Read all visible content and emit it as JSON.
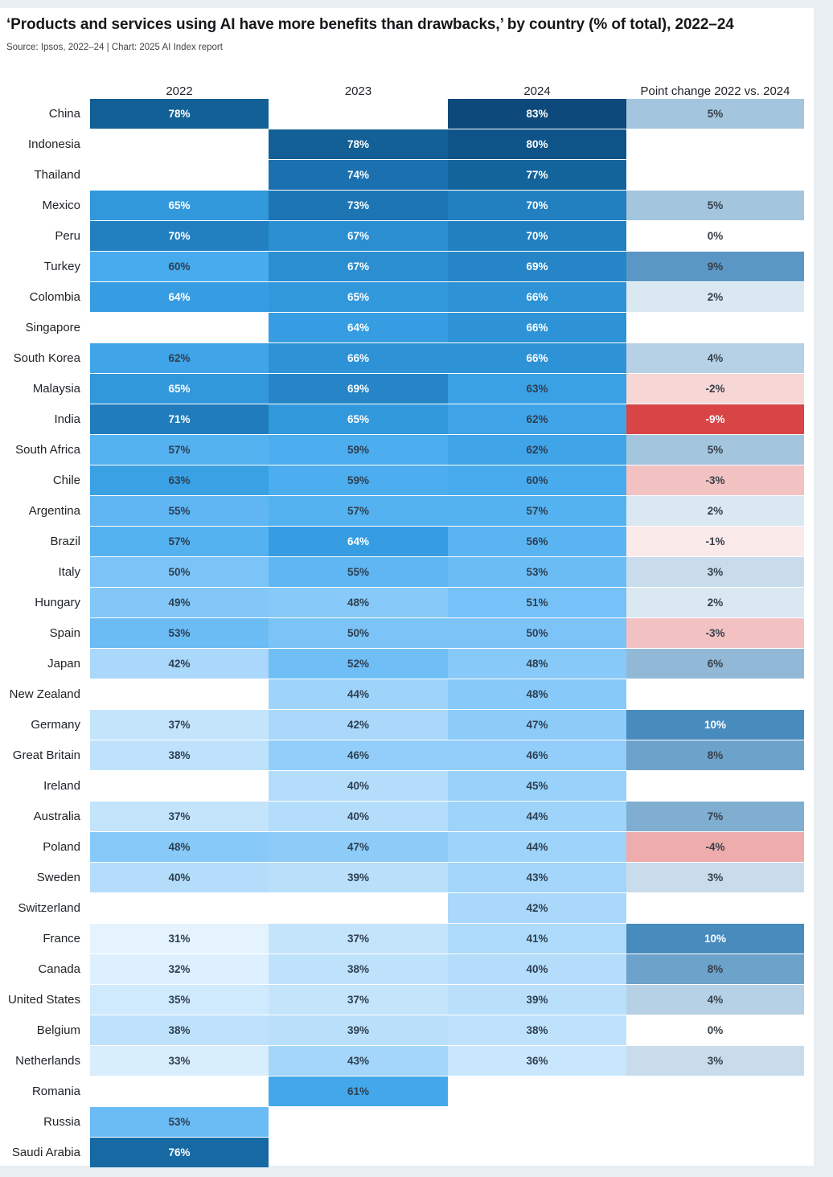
{
  "header": {
    "title": "‘Products and services using AI have more benefits than drawbacks,’ by country (% of total), 2022–24",
    "source": "Source: Ipsos, 2022–24 | Chart: 2025 AI Index report"
  },
  "chart_data": {
    "type": "heatmap",
    "title": "‘Products and services using AI have more benefits than drawbacks,’ by country (% of total), 2022–24",
    "source": "Source: Ipsos, 2022–24 | Chart: 2025 AI Index report",
    "unit": "%",
    "columns": [
      "2022",
      "2023",
      "2024",
      "Point change 2022 vs. 2024"
    ],
    "value_range": [
      31,
      83
    ],
    "change_range": [
      -9,
      10
    ],
    "legend_position": "none",
    "grid": false,
    "colors": {
      "year_scale_low": "#e9f5fe",
      "year_scale_high": "#0b4270",
      "change_positive_max": "#488bbd",
      "change_negative_max": "#d94546",
      "empty_cell": "#ffffff",
      "white_text_year_threshold": 64,
      "page_background": "#e9eef3",
      "card_background": "#ffffff"
    },
    "rows": [
      {
        "country": "China",
        "y2022": 78,
        "y2023": null,
        "y2024": 83,
        "change": 5
      },
      {
        "country": "Indonesia",
        "y2022": null,
        "y2023": 78,
        "y2024": 80,
        "change": null
      },
      {
        "country": "Thailand",
        "y2022": null,
        "y2023": 74,
        "y2024": 77,
        "change": null
      },
      {
        "country": "Mexico",
        "y2022": 65,
        "y2023": 73,
        "y2024": 70,
        "change": 5
      },
      {
        "country": "Peru",
        "y2022": 70,
        "y2023": 67,
        "y2024": 70,
        "change": 0
      },
      {
        "country": "Turkey",
        "y2022": 60,
        "y2023": 67,
        "y2024": 69,
        "change": 9
      },
      {
        "country": "Colombia",
        "y2022": 64,
        "y2023": 65,
        "y2024": 66,
        "change": 2
      },
      {
        "country": "Singapore",
        "y2022": null,
        "y2023": 64,
        "y2024": 66,
        "change": null
      },
      {
        "country": "South Korea",
        "y2022": 62,
        "y2023": 66,
        "y2024": 66,
        "change": 4
      },
      {
        "country": "Malaysia",
        "y2022": 65,
        "y2023": 69,
        "y2024": 63,
        "change": -2
      },
      {
        "country": "India",
        "y2022": 71,
        "y2023": 65,
        "y2024": 62,
        "change": -9
      },
      {
        "country": "South Africa",
        "y2022": 57,
        "y2023": 59,
        "y2024": 62,
        "change": 5
      },
      {
        "country": "Chile",
        "y2022": 63,
        "y2023": 59,
        "y2024": 60,
        "change": -3
      },
      {
        "country": "Argentina",
        "y2022": 55,
        "y2023": 57,
        "y2024": 57,
        "change": 2
      },
      {
        "country": "Brazil",
        "y2022": 57,
        "y2023": 64,
        "y2024": 56,
        "change": -1
      },
      {
        "country": "Italy",
        "y2022": 50,
        "y2023": 55,
        "y2024": 53,
        "change": 3
      },
      {
        "country": "Hungary",
        "y2022": 49,
        "y2023": 48,
        "y2024": 51,
        "change": 2
      },
      {
        "country": "Spain",
        "y2022": 53,
        "y2023": 50,
        "y2024": 50,
        "change": -3
      },
      {
        "country": "Japan",
        "y2022": 42,
        "y2023": 52,
        "y2024": 48,
        "change": 6
      },
      {
        "country": "New Zealand",
        "y2022": null,
        "y2023": 44,
        "y2024": 48,
        "change": null
      },
      {
        "country": "Germany",
        "y2022": 37,
        "y2023": 42,
        "y2024": 47,
        "change": 10
      },
      {
        "country": "Great Britain",
        "y2022": 38,
        "y2023": 46,
        "y2024": 46,
        "change": 8
      },
      {
        "country": "Ireland",
        "y2022": null,
        "y2023": 40,
        "y2024": 45,
        "change": null
      },
      {
        "country": "Australia",
        "y2022": 37,
        "y2023": 40,
        "y2024": 44,
        "change": 7
      },
      {
        "country": "Poland",
        "y2022": 48,
        "y2023": 47,
        "y2024": 44,
        "change": -4
      },
      {
        "country": "Sweden",
        "y2022": 40,
        "y2023": 39,
        "y2024": 43,
        "change": 3
      },
      {
        "country": "Switzerland",
        "y2022": null,
        "y2023": null,
        "y2024": 42,
        "change": null
      },
      {
        "country": "France",
        "y2022": 31,
        "y2023": 37,
        "y2024": 41,
        "change": 10
      },
      {
        "country": "Canada",
        "y2022": 32,
        "y2023": 38,
        "y2024": 40,
        "change": 8
      },
      {
        "country": "United States",
        "y2022": 35,
        "y2023": 37,
        "y2024": 39,
        "change": 4
      },
      {
        "country": "Belgium",
        "y2022": 38,
        "y2023": 39,
        "y2024": 38,
        "change": 0
      },
      {
        "country": "Netherlands",
        "y2022": 33,
        "y2023": 43,
        "y2024": 36,
        "change": 3
      },
      {
        "country": "Romania",
        "y2022": null,
        "y2023": 61,
        "y2024": null,
        "change": null
      },
      {
        "country": "Russia",
        "y2022": 53,
        "y2023": null,
        "y2024": null,
        "change": null
      },
      {
        "country": "Saudi Arabia",
        "y2022": 76,
        "y2023": null,
        "y2024": null,
        "change": null
      }
    ]
  }
}
